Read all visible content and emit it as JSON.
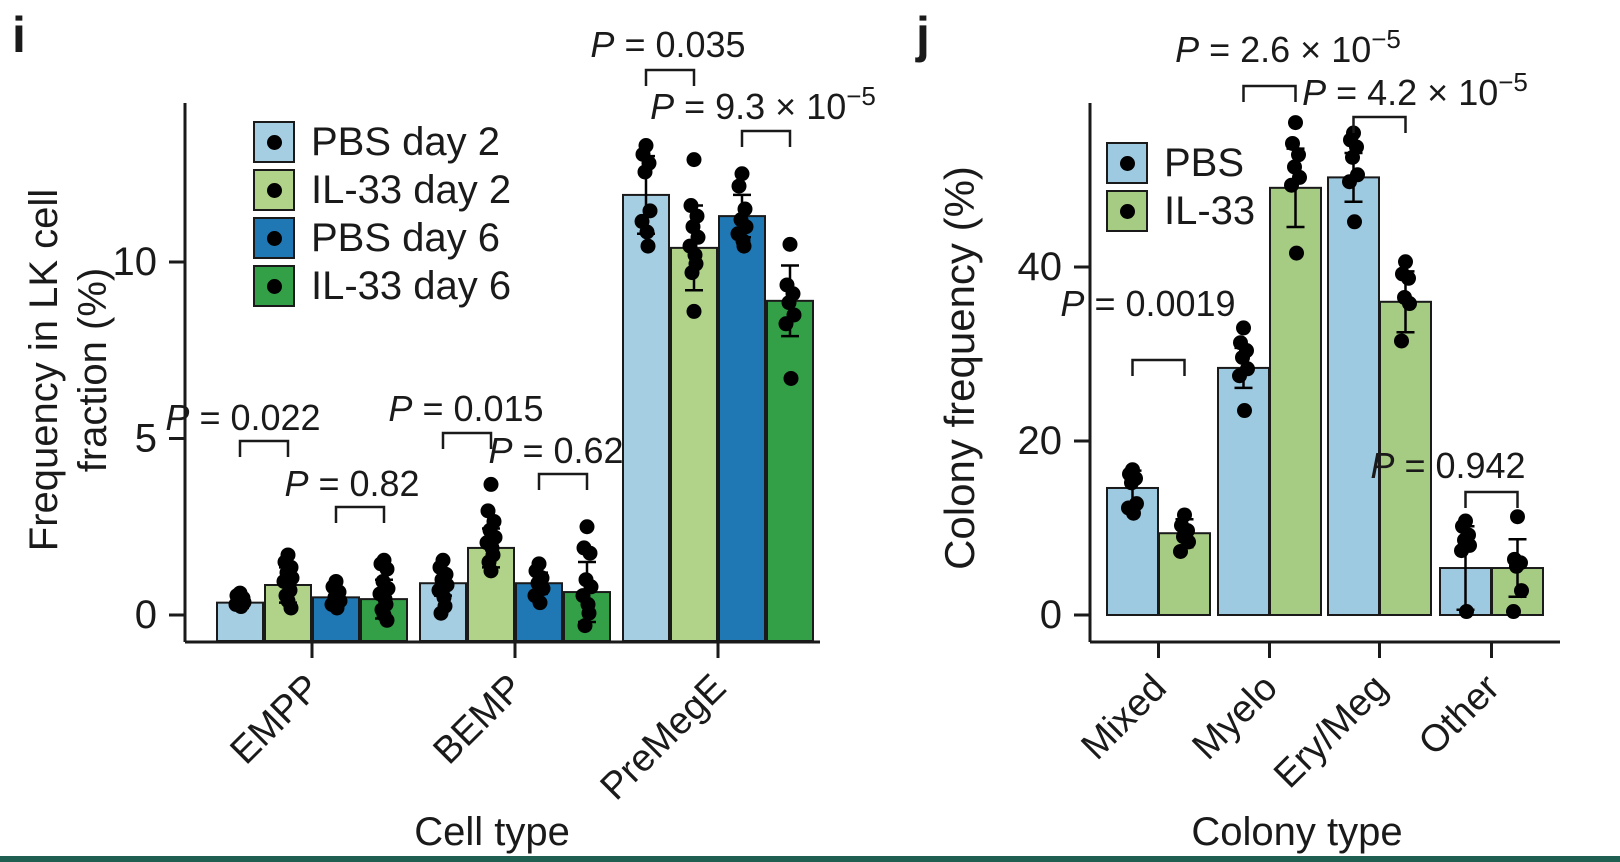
{
  "figure": {
    "panel_i_label": "i",
    "panel_j_label": "j",
    "colors": {
      "axis": "#1A1A1A",
      "dot": "#000000",
      "background": "#FFFFFF",
      "bottom_border": "#1E5F52"
    }
  },
  "chart_data": [
    {
      "id": "i",
      "type": "bar",
      "panel_label": "i",
      "xlabel": "Cell type",
      "ylabel": "Frequency in LK cell fraction (%)",
      "ylabel_lines": [
        "Frequency in LK cell",
        "fraction (%)"
      ],
      "yticks": [
        0,
        5,
        10
      ],
      "ylim": [
        0,
        14.5
      ],
      "grid": false,
      "legend_position": "top-left-inside",
      "categories": [
        "EMPP",
        "BEMP",
        "PreMegE"
      ],
      "series": [
        {
          "name": "PBS day 2",
          "color": "#A6CEE3",
          "values": [
            0.35,
            0.9,
            11.9
          ],
          "errors": [
            0.15,
            0.35,
            1.1
          ],
          "points": [
            [
              0.62,
              0.55,
              0.48,
              0.42,
              0.36,
              0.3,
              0.24
            ],
            [
              1.55,
              1.35,
              1.15,
              1.0,
              0.85,
              0.7,
              0.5,
              0.25,
              0.05
            ],
            [
              13.3,
              13.05,
              12.8,
              12.55,
              11.45,
              11.15,
              10.85,
              10.45
            ]
          ]
        },
        {
          "name": "IL-33 day 2",
          "color": "#B0D389",
          "values": [
            0.85,
            1.9,
            10.4
          ],
          "errors": [
            0.5,
            0.55,
            1.2
          ],
          "points": [
            [
              1.7,
              1.5,
              1.35,
              1.2,
              1.05,
              0.95,
              0.85,
              0.7,
              0.55,
              0.4,
              0.2
            ],
            [
              3.7,
              2.95,
              2.65,
              2.4,
              2.2,
              2.05,
              1.9,
              1.7,
              1.5,
              1.25
            ],
            [
              12.9,
              11.6,
              11.3,
              11.0,
              10.7,
              10.45,
              10.2,
              9.95,
              9.7,
              8.6
            ]
          ]
        },
        {
          "name": "PBS day 6",
          "color": "#1F78B4",
          "values": [
            0.5,
            0.9,
            11.3
          ],
          "errors": [
            0.2,
            0.3,
            0.6
          ],
          "points": [
            [
              0.95,
              0.8,
              0.65,
              0.5,
              0.4,
              0.3,
              0.2
            ],
            [
              1.45,
              1.25,
              1.05,
              0.9,
              0.75,
              0.55,
              0.35
            ],
            [
              12.5,
              12.15,
              11.5,
              11.2,
              11.0,
              10.8,
              10.6,
              10.45
            ]
          ]
        },
        {
          "name": "IL-33 day 6",
          "color": "#33A048",
          "values": [
            0.45,
            0.65,
            8.9
          ],
          "errors": [
            0.55,
            0.85,
            1.0
          ],
          "points": [
            [
              1.55,
              1.45,
              1.3,
              0.95,
              0.75,
              0.6,
              0.45,
              0.3,
              0.15,
              0.0,
              -0.15
            ],
            [
              2.5,
              1.9,
              1.75,
              1.0,
              0.8,
              0.55,
              0.3,
              0.05,
              -0.3
            ],
            [
              10.5,
              9.35,
              9.1,
              8.85,
              8.5,
              8.25,
              6.7
            ]
          ]
        }
      ],
      "annotations": [
        {
          "label": "P = 0.022",
          "category": "EMPP",
          "between": [
            "PBS day 2",
            "IL-33 day 2"
          ]
        },
        {
          "label": "P = 0.82",
          "category": "EMPP",
          "between": [
            "PBS day 6",
            "IL-33 day 6"
          ]
        },
        {
          "label": "P = 0.015",
          "category": "BEMP",
          "between": [
            "PBS day 2",
            "IL-33 day 2"
          ]
        },
        {
          "label": "P = 0.62",
          "category": "BEMP",
          "between": [
            "PBS day 6",
            "IL-33 day 6"
          ]
        },
        {
          "label": "P = 0.035",
          "category": "PreMegE",
          "between": [
            "PBS day 2",
            "IL-33 day 2"
          ]
        },
        {
          "label": "P = 9.3 × 10^−5",
          "category": "PreMegE",
          "between": [
            "PBS day 6",
            "IL-33 day 6"
          ]
        }
      ]
    },
    {
      "id": "j",
      "type": "bar",
      "panel_label": "j",
      "xlabel": "Colony type",
      "ylabel": "Colony frequency (%)",
      "ylabel_lines": [
        "Colony frequency (%)"
      ],
      "yticks": [
        0,
        20,
        40
      ],
      "ylim": [
        0,
        59
      ],
      "grid": false,
      "legend_position": "top-left-inside",
      "categories": [
        "Mixed",
        "Myelo",
        "Ery/Meg",
        "Other"
      ],
      "series": [
        {
          "name": "PBS",
          "color": "#9ECAE1",
          "values": [
            14.6,
            28.4,
            50.3,
            5.4
          ],
          "errors": [
            2.0,
            2.3,
            2.8,
            4.8
          ],
          "points": [
            [
              16.7,
              16.2,
              15.7,
              15.2,
              12.8,
              12.3,
              11.7
            ],
            [
              33.0,
              31.3,
              30.4,
              29.6,
              28.3,
              27.5,
              23.5
            ],
            [
              55.4,
              54.6,
              53.8,
              52.6,
              50.6,
              49.8,
              45.2
            ],
            [
              10.8,
              10.2,
              9.2,
              8.6,
              8.0,
              7.4,
              0.4
            ]
          ]
        },
        {
          "name": "IL-33",
          "color": "#A6CB83",
          "values": [
            9.4,
            49.1,
            36.0,
            5.4
          ],
          "errors": [
            1.6,
            4.5,
            3.5,
            3.3
          ],
          "points": [
            [
              11.5,
              10.3,
              9.7,
              9.0,
              8.4,
              7.3
            ],
            [
              56.6,
              54.2,
              52.9,
              51.5,
              50.3,
              49.4,
              41.6
            ],
            [
              40.6,
              39.2,
              38.7,
              36.5,
              35.8,
              31.5
            ],
            [
              11.3,
              6.4,
              6.0,
              5.6,
              2.8,
              0.4
            ]
          ]
        }
      ],
      "annotations": [
        {
          "label": "P = 0.0019",
          "category": "Mixed",
          "between": [
            "PBS",
            "IL-33"
          ]
        },
        {
          "label": "P = 2.6 × 10^−5",
          "category": "Myelo",
          "between": [
            "PBS",
            "IL-33"
          ]
        },
        {
          "label": "P = 4.2 × 10^−5",
          "category": "Ery/Meg",
          "between": [
            "PBS",
            "IL-33"
          ]
        },
        {
          "label": "P = 0.942",
          "category": "Other",
          "between": [
            "PBS",
            "IL-33"
          ]
        }
      ]
    }
  ]
}
